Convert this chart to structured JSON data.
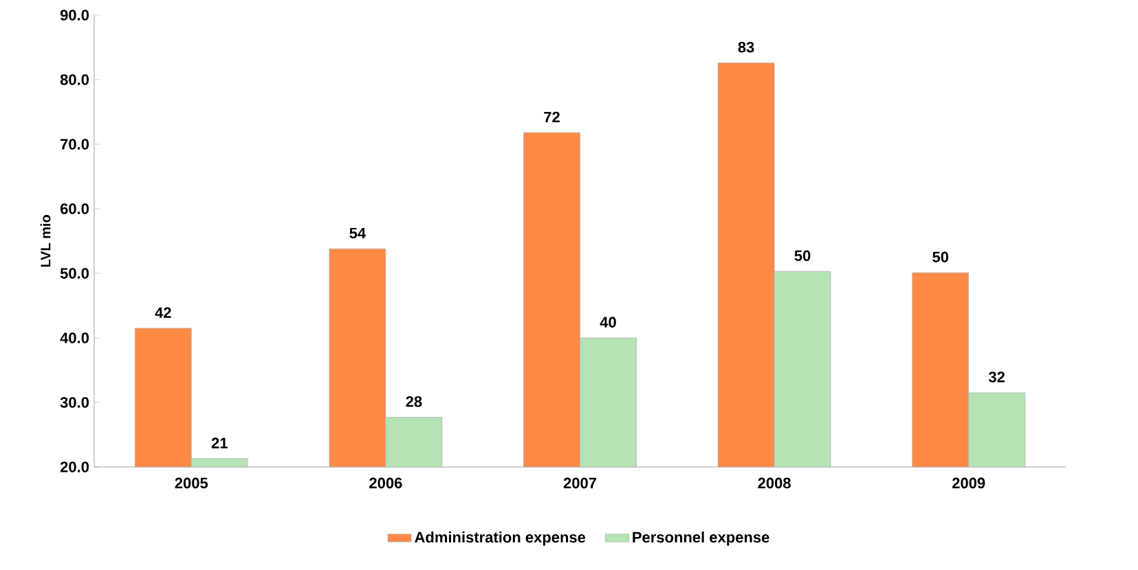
{
  "chart_data": {
    "type": "bar",
    "ylabel": "LVL mio",
    "categories": [
      "2005",
      "2006",
      "2007",
      "2008",
      "2009"
    ],
    "series": [
      {
        "name": "Administration expense",
        "color": "#ff8a45",
        "values": [
          41.5,
          53.8,
          71.8,
          82.6,
          50.1
        ],
        "value_labels": [
          "42",
          "54",
          "72",
          "83",
          "50"
        ]
      },
      {
        "name": "Personnel expense",
        "color": "#b5e3b5",
        "values": [
          21.3,
          27.7,
          40.0,
          50.3,
          31.5
        ],
        "value_labels": [
          "21",
          "28",
          "40",
          "50",
          "32"
        ]
      }
    ],
    "ylim": [
      20,
      90
    ],
    "yticks": [
      {
        "value": 20,
        "label": "20.0"
      },
      {
        "value": 30,
        "label": "30.0"
      },
      {
        "value": 40,
        "label": "40.0"
      },
      {
        "value": 50,
        "label": "50.0"
      },
      {
        "value": 60,
        "label": "60.0"
      },
      {
        "value": 70,
        "label": "70.0"
      },
      {
        "value": 80,
        "label": "80.0"
      },
      {
        "value": 90,
        "label": "90.0"
      }
    ],
    "grid": false,
    "legend": "bottom"
  }
}
